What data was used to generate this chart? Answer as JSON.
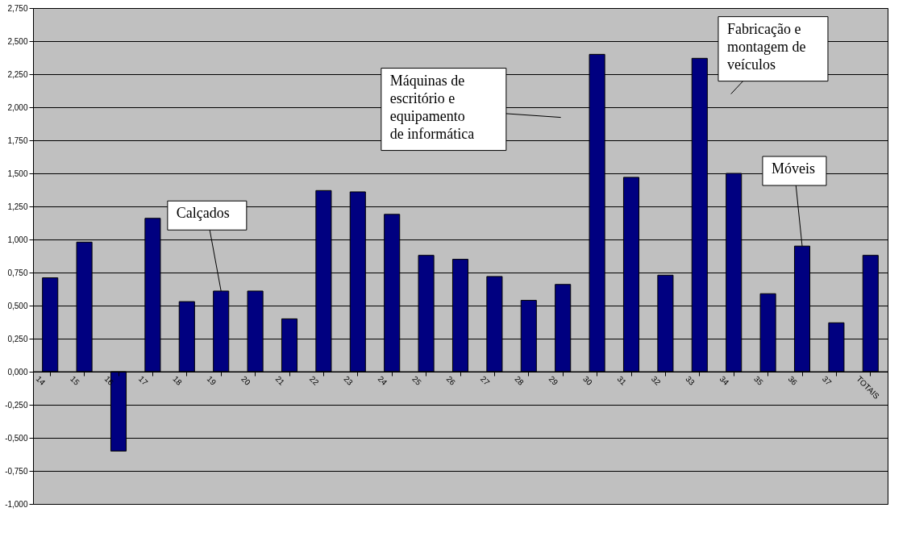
{
  "chart_data": {
    "type": "bar",
    "categories": [
      "14",
      "15",
      "16",
      "17",
      "18",
      "19",
      "20",
      "21",
      "22",
      "23",
      "24",
      "25",
      "26",
      "27",
      "28",
      "29",
      "30",
      "31",
      "32",
      "33",
      "34",
      "35",
      "36",
      "37",
      "TOTAIS"
    ],
    "values": [
      0.71,
      0.98,
      -0.6,
      1.16,
      0.53,
      0.61,
      0.61,
      0.4,
      1.37,
      1.36,
      1.19,
      0.88,
      0.85,
      0.72,
      0.54,
      0.66,
      2.4,
      1.47,
      0.73,
      2.37,
      1.5,
      0.59,
      0.95,
      0.37,
      0.88
    ],
    "color": "#000080",
    "ylim": [
      -1.0,
      2.75
    ],
    "yticks": [
      {
        "value": -1.0,
        "label": "-1,000"
      },
      {
        "value": -0.75,
        "label": "-0,750"
      },
      {
        "value": -0.5,
        "label": "-0,500"
      },
      {
        "value": -0.25,
        "label": "-0,250"
      },
      {
        "value": 0,
        "label": "0,000"
      },
      {
        "value": 0.25,
        "label": "0,250"
      },
      {
        "value": 0.5,
        "label": "0,500"
      },
      {
        "value": 0.75,
        "label": "0,750"
      },
      {
        "value": 1.0,
        "label": "1,000"
      },
      {
        "value": 1.25,
        "label": "1,250"
      },
      {
        "value": 1.5,
        "label": "1,500"
      },
      {
        "value": 1.75,
        "label": "1,750"
      },
      {
        "value": 2.0,
        "label": "2,000"
      },
      {
        "value": 2.25,
        "label": "2,250"
      },
      {
        "value": 2.5,
        "label": "2,500"
      },
      {
        "value": 2.75,
        "label": "2,750"
      }
    ],
    "grid": "y",
    "annotations": [
      {
        "text": "Calçados",
        "x": "19",
        "y": 0.61
      },
      "Máquinas de\nescritório e\nequipamento\nde informática",
      "Fabricação e\nmontagem de\nveículos",
      {
        "text": "Móveis",
        "x": "36",
        "y": 0.95
      }
    ]
  }
}
